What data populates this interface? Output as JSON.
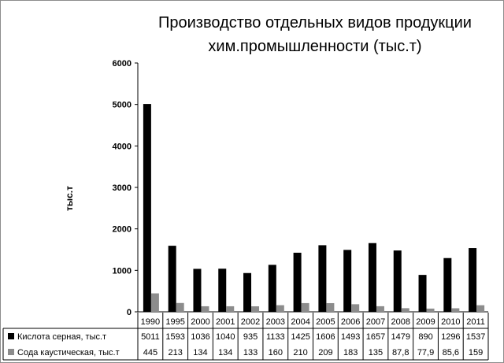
{
  "chart_data": {
    "type": "bar",
    "title_line1": "Производство отдельных видов продукции",
    "title_line2": "хим.промышленности (тыс.т)",
    "ylabel": "тыс.т",
    "xlabel": "",
    "ylim": [
      0,
      6000
    ],
    "yticks": [
      0,
      1000,
      2000,
      3000,
      4000,
      5000,
      6000
    ],
    "grid": false,
    "legend": "data-table",
    "categories": [
      "1990",
      "1995",
      "2000",
      "2001",
      "2002",
      "2003",
      "2004",
      "2005",
      "2006",
      "2007",
      "2008",
      "2009",
      "2010",
      "2011"
    ],
    "series": [
      {
        "name": "Кислота серная, тыс.т",
        "color": "#000000",
        "values": [
          5011,
          1593,
          1036,
          1040,
          935,
          1133,
          1425,
          1606,
          1493,
          1657,
          1479,
          890,
          1296,
          1537
        ],
        "labels": [
          "5011",
          "1593",
          "1036",
          "1040",
          "935",
          "1133",
          "1425",
          "1606",
          "1493",
          "1657",
          "1479",
          "890",
          "1296",
          "1537"
        ]
      },
      {
        "name": "Сода каустическая, тыс.т",
        "color": "#8c8c8c",
        "values": [
          445,
          213,
          134,
          134,
          133,
          160,
          210,
          209,
          183,
          135,
          87.8,
          77.9,
          85.6,
          159
        ],
        "labels": [
          "445",
          "213",
          "134",
          "134",
          "133",
          "160",
          "210",
          "209",
          "183",
          "135",
          "87,8",
          "77,9",
          "85,6",
          "159"
        ]
      }
    ]
  }
}
